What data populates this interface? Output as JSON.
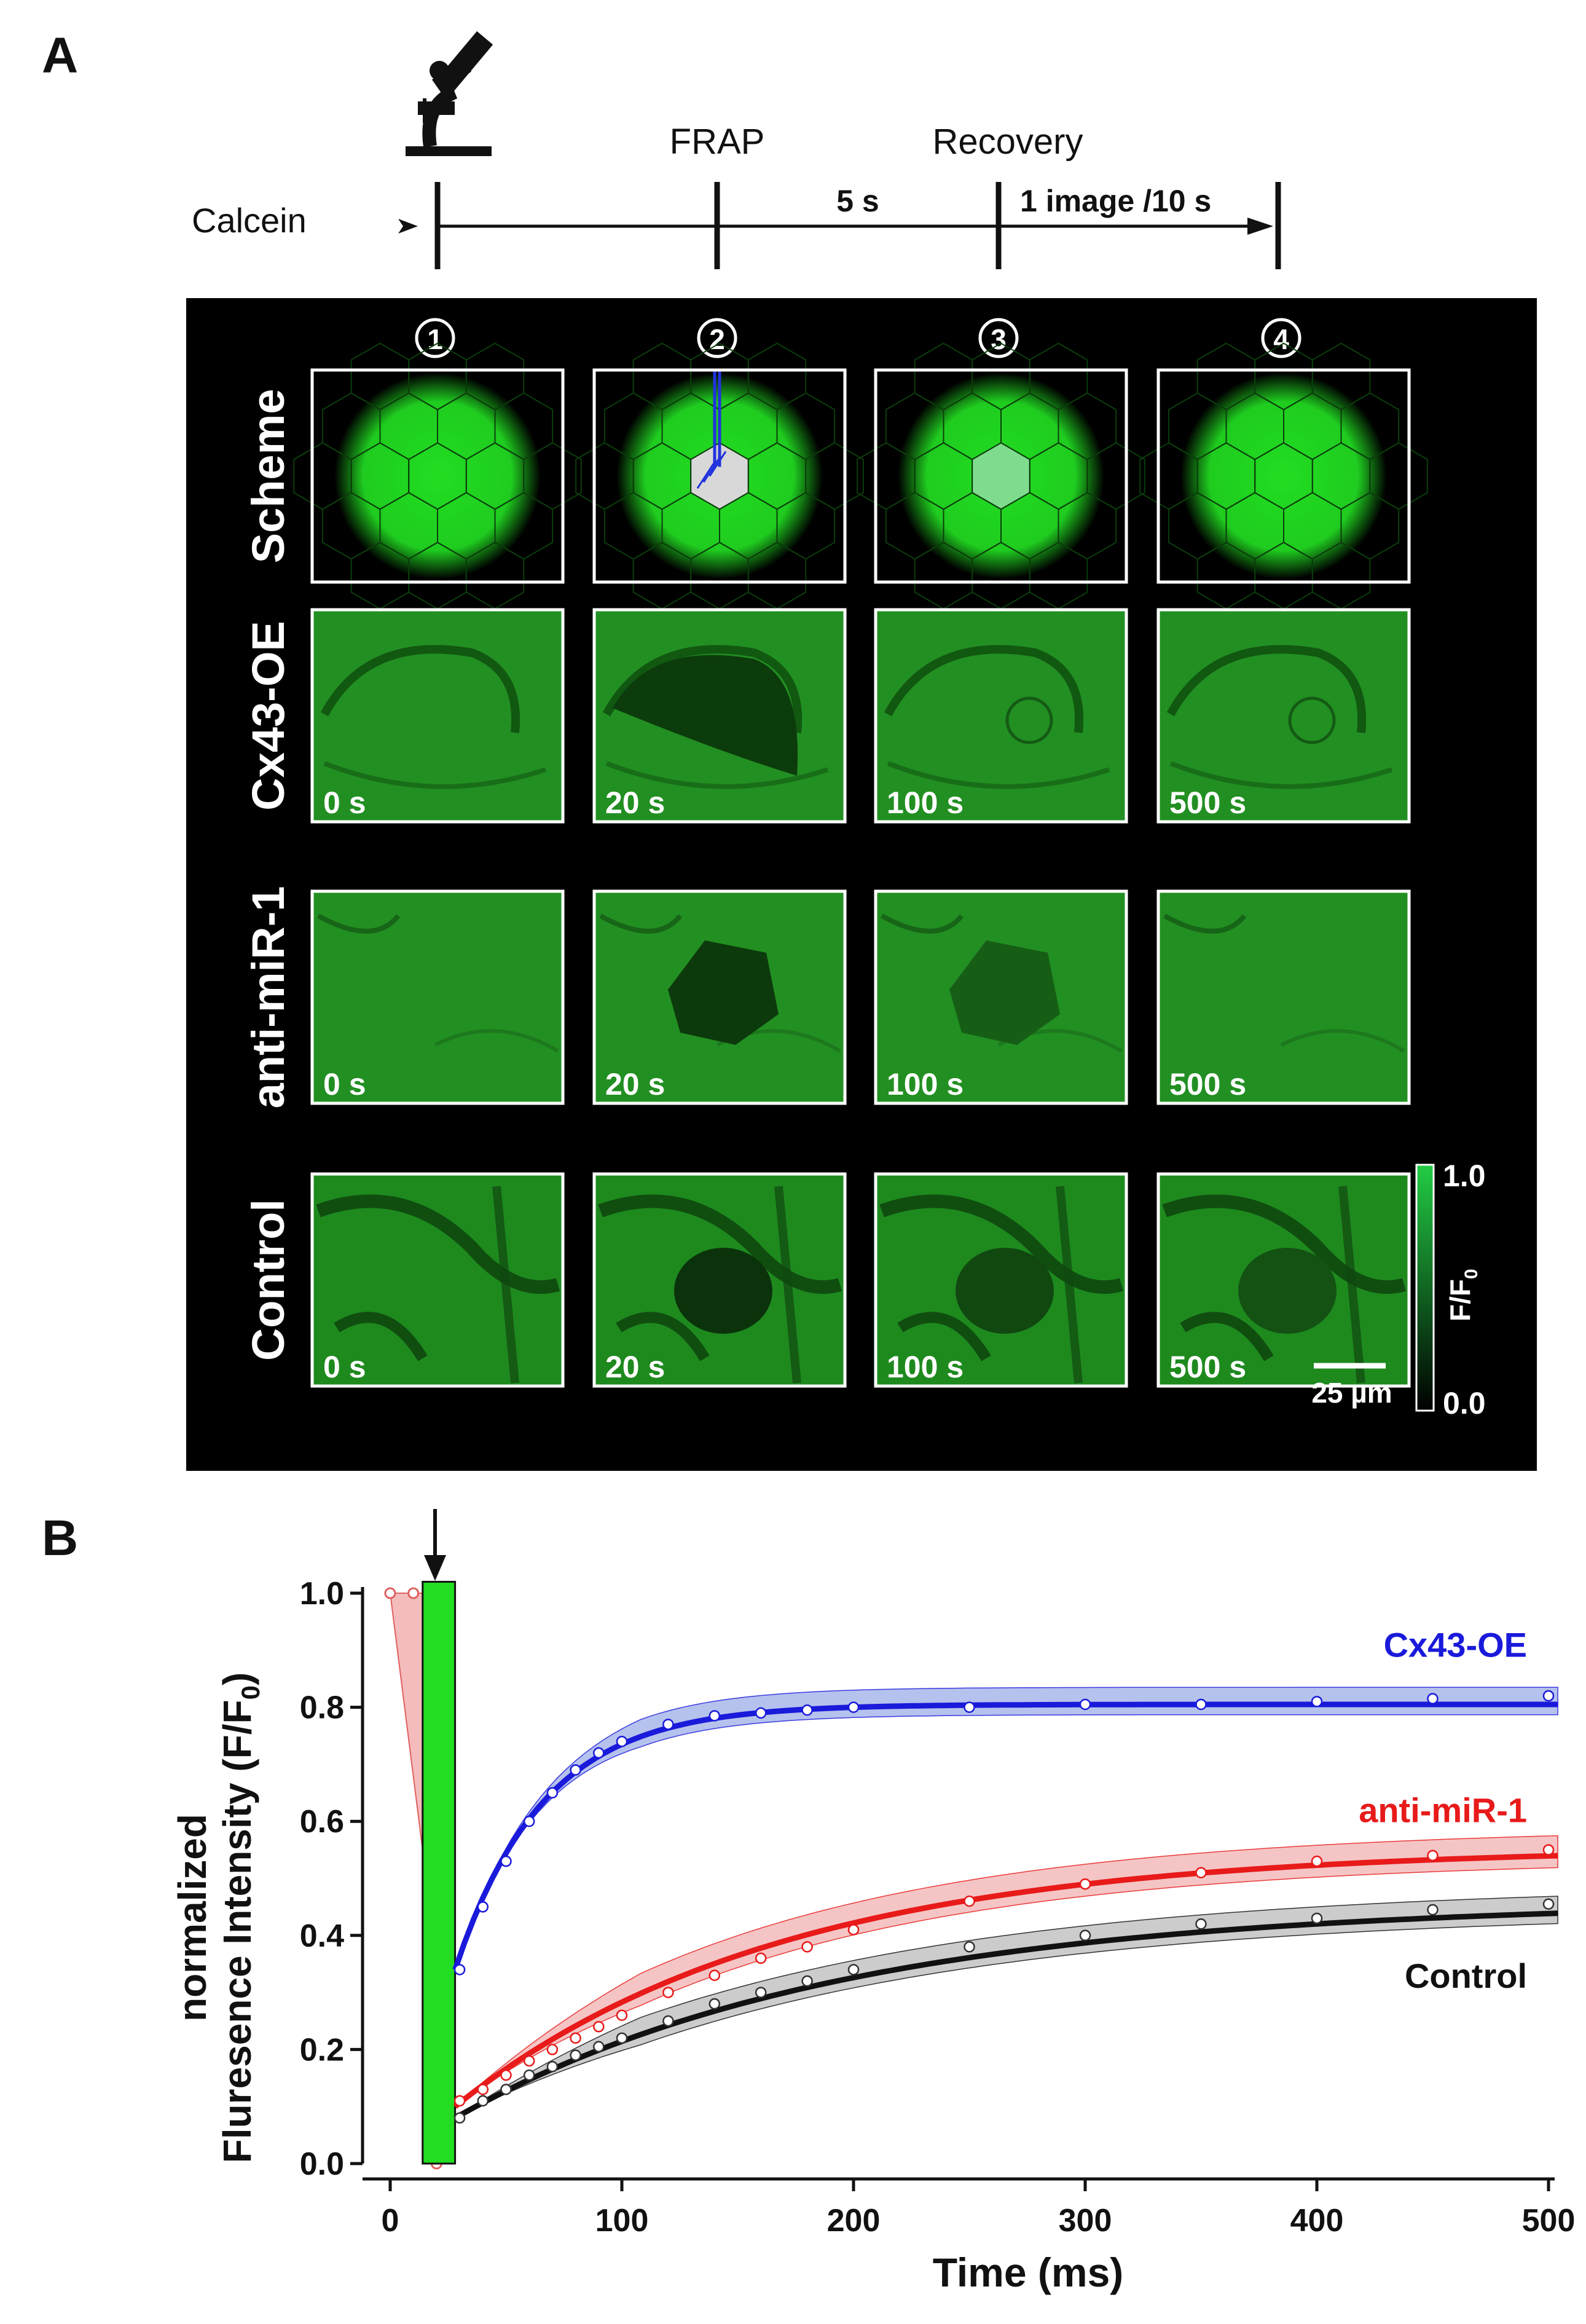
{
  "panelA": {
    "label": "A",
    "timeline": {
      "calcein": "Calcein",
      "frap": "FRAP",
      "recovery": "Recovery",
      "interval": "5 s",
      "rate": "1 image /10 s",
      "icon": "microscope-icon"
    },
    "steps": [
      "1",
      "2",
      "3",
      "4"
    ],
    "rows": [
      {
        "label": "Scheme",
        "times": [
          "",
          "",
          "",
          ""
        ]
      },
      {
        "label": "Cx43-OE",
        "times": [
          "0 s",
          "20 s",
          "100 s",
          "500 s"
        ]
      },
      {
        "label": "anti-miR-1",
        "times": [
          "0 s",
          "20 s",
          "100 s",
          "500 s"
        ]
      },
      {
        "label": "Control",
        "times": [
          "0 s",
          "20 s",
          "100 s",
          "500 s"
        ]
      }
    ],
    "colorbar": {
      "max": "1.0",
      "min": "0.0",
      "label": "F/F",
      "sub": "0"
    },
    "scalebar": "25 µm",
    "colors": {
      "fluor": "#1fcb1f",
      "tissue": "#1f8f1f",
      "bleach": "#d8d8d8",
      "beam": "#2233dd"
    }
  },
  "panelB": {
    "label": "B",
    "chart_data": {
      "type": "line",
      "xlabel": "Time (ms)",
      "ylabel_line1": "normalized",
      "ylabel_line2": "Fluresence Intensity (F/F",
      "ylabel_sub": "0",
      "ylabel_close": ")",
      "xlim": [
        0,
        500
      ],
      "ylim": [
        0,
        1
      ],
      "xticks": [
        "0",
        "100",
        "200",
        "300",
        "400",
        "500"
      ],
      "yticks": [
        "0.0",
        "0.2",
        "0.4",
        "0.6",
        "0.8",
        "1.0"
      ],
      "frap_bar": {
        "x_start": 14,
        "x_end": 28,
        "height": 1.02
      },
      "prebleach": {
        "x": [
          0,
          10,
          20
        ],
        "y": [
          1.0,
          1.0,
          0.0
        ]
      },
      "series": [
        {
          "name": "Cx43-OE",
          "color": "#1a1adb",
          "band_color": "#a9b8ea",
          "x": [
            30,
            40,
            50,
            60,
            70,
            80,
            90,
            100,
            120,
            140,
            160,
            180,
            200,
            250,
            300,
            350,
            400,
            450,
            500
          ],
          "y": [
            0.34,
            0.45,
            0.53,
            0.6,
            0.65,
            0.69,
            0.72,
            0.74,
            0.77,
            0.785,
            0.79,
            0.795,
            0.8,
            0.8,
            0.805,
            0.805,
            0.81,
            0.815,
            0.82
          ],
          "fit": {
            "y0": 0.34,
            "plateau": 0.805,
            "tau": 38
          },
          "band": 0.03
        },
        {
          "name": "anti-miR-1",
          "color": "#e81a1a",
          "band_color": "#f4bcbc",
          "x": [
            30,
            40,
            50,
            60,
            70,
            80,
            90,
            100,
            120,
            140,
            160,
            180,
            200,
            250,
            300,
            350,
            400,
            450,
            500
          ],
          "y": [
            0.11,
            0.13,
            0.155,
            0.18,
            0.2,
            0.22,
            0.24,
            0.26,
            0.3,
            0.33,
            0.36,
            0.38,
            0.41,
            0.46,
            0.49,
            0.51,
            0.53,
            0.54,
            0.55
          ],
          "fit": {
            "y0": 0.1,
            "plateau": 0.555,
            "tau": 140
          },
          "band": 0.035
        },
        {
          "name": "Control",
          "color": "#111111",
          "band_color": "#c4c4c4",
          "x": [
            30,
            40,
            50,
            60,
            70,
            80,
            90,
            100,
            120,
            140,
            160,
            180,
            200,
            250,
            300,
            350,
            400,
            450,
            500
          ],
          "y": [
            0.08,
            0.11,
            0.13,
            0.155,
            0.17,
            0.19,
            0.205,
            0.22,
            0.25,
            0.28,
            0.3,
            0.32,
            0.34,
            0.38,
            0.4,
            0.42,
            0.43,
            0.445,
            0.455
          ],
          "fit": {
            "y0": 0.08,
            "plateau": 0.46,
            "tau": 165
          },
          "band": 0.03
        }
      ]
    }
  }
}
